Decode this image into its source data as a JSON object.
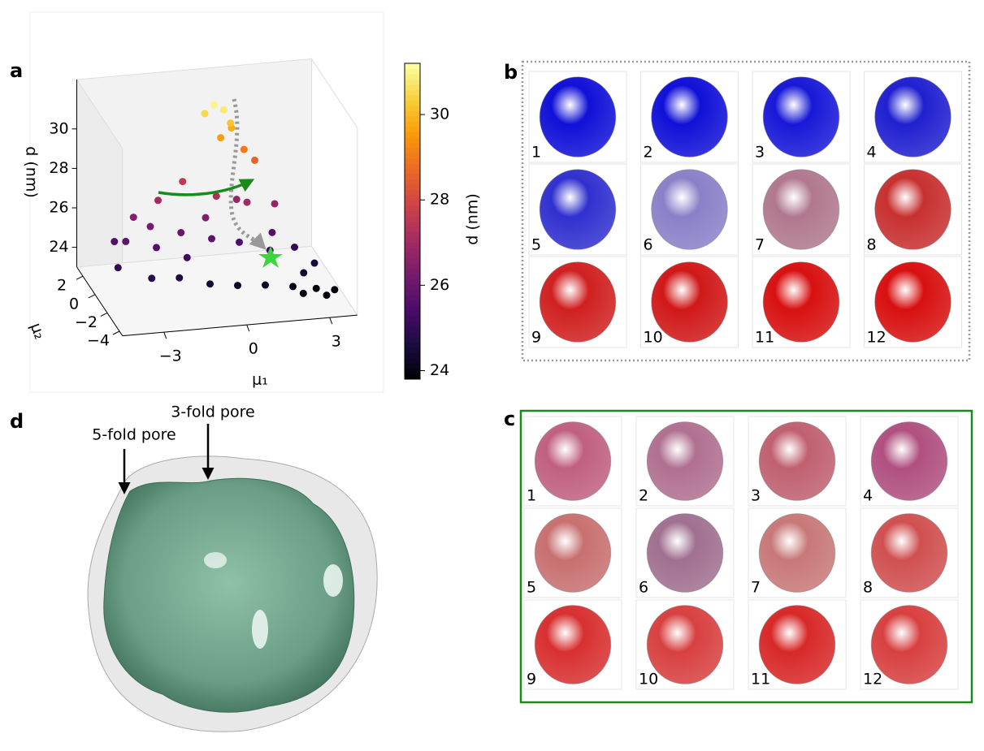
{
  "labels": [
    "a",
    "b",
    "c",
    "d"
  ],
  "chart_data": {
    "type": "scatter3d",
    "xlabel": "μ₁",
    "ylabel": "μ₂",
    "zlabel": "d (nm)",
    "xlim": [
      -4.5,
      4
    ],
    "ylim": [
      -4.5,
      3
    ],
    "zlim": [
      23,
      32.5
    ],
    "xticks": [
      {
        "value": -3,
        "label": "−3"
      },
      0,
      3
    ],
    "yticks": [
      {
        "value": -4,
        "label": "−4"
      },
      {
        "value": -2,
        "label": "−2"
      },
      0,
      2
    ],
    "zticks": [
      24,
      26,
      28,
      30
    ],
    "colormap": "inferno",
    "colorbar": {
      "label": "d (nm)",
      "lim": [
        23.8,
        31.2
      ],
      "ticks": [
        24,
        26,
        28,
        30
      ]
    },
    "x": [
      0.3,
      0.6,
      0.0,
      0.8,
      0.4,
      1.2,
      0.9,
      1.5,
      -1.0,
      -2.0,
      0.0,
      1.0,
      2.0,
      -3.0,
      -3.5,
      -2.5,
      -1.5,
      -0.5,
      0.5,
      1.5,
      2.5,
      3.0,
      -4.0,
      -3.0,
      -2.0,
      -1.0,
      0.0,
      1.0,
      2.0,
      2.8,
      3.4,
      3.0,
      2.2,
      -1.5,
      -0.5,
      0.8,
      -2.5,
      1.8,
      -3.8,
      2.5
    ],
    "y": [
      2.2,
      2.0,
      2.4,
      1.8,
      1.6,
      1.4,
      2.1,
      1.0,
      1.5,
      1.0,
      0.5,
      0.0,
      0.0,
      0.5,
      -0.5,
      -1.0,
      -0.5,
      -1.0,
      -1.0,
      -1.5,
      -1.0,
      -2.0,
      -1.5,
      -2.5,
      -2.5,
      -3.0,
      -3.0,
      -3.0,
      -3.0,
      -3.2,
      -3.5,
      -4.0,
      -3.8,
      -1.5,
      0.0,
      0.8,
      0.0,
      -0.5,
      0.0,
      -2.5
    ],
    "z": [
      31.0,
      30.8,
      30.5,
      30.2,
      29.6,
      29.0,
      29.8,
      28.6,
      27.6,
      27.0,
      27.2,
      27.0,
      26.8,
      26.5,
      25.8,
      25.6,
      26.0,
      25.8,
      25.5,
      25.2,
      25.0,
      24.6,
      25.0,
      24.8,
      24.7,
      24.5,
      24.3,
      24.2,
      24.0,
      23.9,
      23.9,
      23.9,
      24.0,
      25.2,
      26.4,
      26.8,
      26.2,
      25.6,
      25.6,
      24.4
    ]
  },
  "panel_b": {
    "items": [
      {
        "label": "1",
        "color": "#1010d8"
      },
      {
        "label": "2",
        "color": "#1010d8"
      },
      {
        "label": "3",
        "color": "#1818d8"
      },
      {
        "label": "4",
        "color": "#2020d0"
      },
      {
        "label": "5",
        "color": "#3030d0"
      },
      {
        "label": "6",
        "color": "#8a80c8"
      },
      {
        "label": "7",
        "color": "#b07890"
      },
      {
        "label": "8",
        "color": "#c83030"
      },
      {
        "label": "9",
        "color": "#d02020"
      },
      {
        "label": "10",
        "color": "#d01818"
      },
      {
        "label": "11",
        "color": "#d81010"
      },
      {
        "label": "12",
        "color": "#d81010"
      }
    ]
  },
  "panel_c": {
    "items": [
      {
        "label": "1",
        "color": "#c06080"
      },
      {
        "label": "2",
        "color": "#b07090"
      },
      {
        "label": "3",
        "color": "#c06070"
      },
      {
        "label": "4",
        "color": "#b05080"
      },
      {
        "label": "5",
        "color": "#c87070"
      },
      {
        "label": "6",
        "color": "#a07090"
      },
      {
        "label": "7",
        "color": "#c87878"
      },
      {
        "label": "8",
        "color": "#d05050"
      },
      {
        "label": "9",
        "color": "#d83030"
      },
      {
        "label": "10",
        "color": "#d84040"
      },
      {
        "label": "11",
        "color": "#d82828"
      },
      {
        "label": "12",
        "color": "#d84040"
      }
    ]
  },
  "panel_d": {
    "annotations": [
      "5-fold pore",
      "3-fold pore"
    ]
  }
}
